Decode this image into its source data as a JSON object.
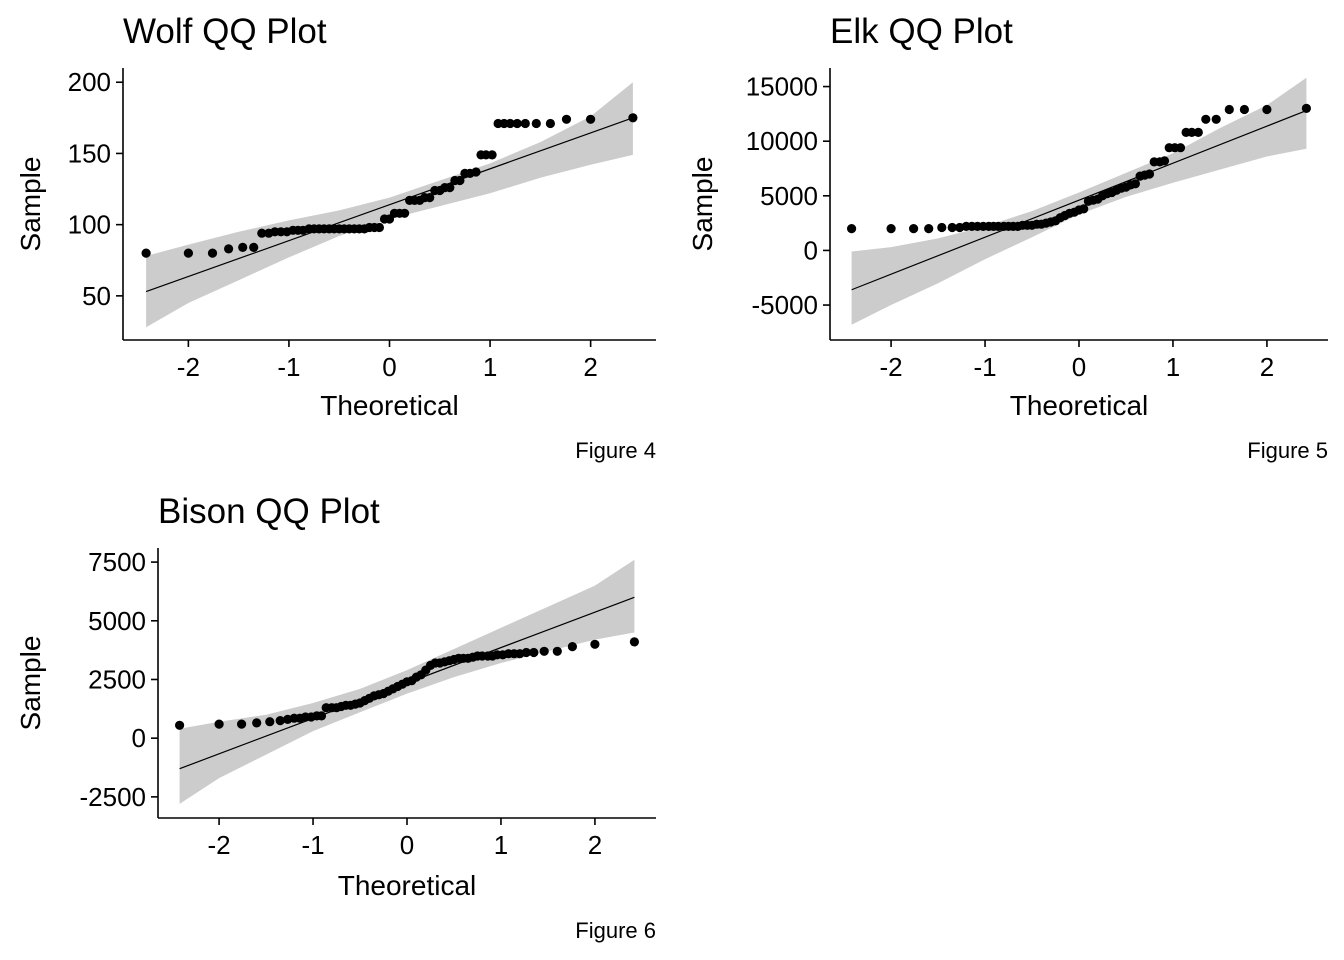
{
  "chart_data": [
    {
      "type": "scatter",
      "title": "Wolf QQ Plot",
      "xlabel": "Theoretical",
      "ylabel": "Sample",
      "caption": "Figure 4",
      "xlim": [
        -2.65,
        2.65
      ],
      "ylim": [
        19,
        210
      ],
      "xticks": [
        -2,
        -1,
        0,
        1,
        2
      ],
      "xtick_labels": [
        "-2",
        "-1",
        "0",
        "1",
        "2"
      ],
      "yticks": [
        50,
        100,
        150,
        200
      ],
      "ytick_labels": [
        "50",
        "100",
        "150",
        "200"
      ],
      "grid": false,
      "reference_line": {
        "x": [
          -2.42,
          2.42
        ],
        "y": [
          53,
          175
        ]
      },
      "confidence_band": {
        "x": [
          -2.42,
          -2.0,
          -1.5,
          -1.0,
          -0.5,
          0.0,
          0.5,
          1.0,
          1.5,
          2.0,
          2.42
        ],
        "lower": [
          28,
          45,
          61,
          77,
          92,
          104,
          113,
          122,
          133,
          142,
          149
        ],
        "upper": [
          78,
          86,
          95,
          103,
          110,
          119,
          131,
          143,
          158,
          176,
          200
        ]
      },
      "points": {
        "x": [
          -2.42,
          -2.0,
          -1.76,
          -1.6,
          -1.46,
          -1.35,
          -1.27,
          -1.2,
          -1.14,
          -1.08,
          -1.02,
          -0.96,
          -0.91,
          -0.86,
          -0.8,
          -0.75,
          -0.7,
          -0.65,
          -0.6,
          -0.55,
          -0.5,
          -0.45,
          -0.4,
          -0.35,
          -0.3,
          -0.25,
          -0.2,
          -0.15,
          -0.1,
          -0.05,
          0.0,
          0.05,
          0.1,
          0.15,
          0.2,
          0.25,
          0.3,
          0.35,
          0.4,
          0.45,
          0.5,
          0.55,
          0.6,
          0.65,
          0.7,
          0.75,
          0.8,
          0.86,
          0.91,
          0.96,
          1.02,
          1.08,
          1.14,
          1.2,
          1.27,
          1.35,
          1.46,
          1.6,
          1.76,
          2.0,
          2.42
        ],
        "y": [
          80,
          80,
          80,
          83,
          84,
          84,
          94,
          94,
          95,
          95,
          95,
          96,
          96,
          96,
          97,
          97,
          97,
          97,
          97,
          97,
          97,
          97,
          97,
          97,
          97,
          97,
          98,
          98,
          98,
          104,
          104,
          108,
          108,
          108,
          117,
          117,
          117,
          119,
          119,
          124,
          124,
          126,
          126,
          131,
          131,
          136,
          136,
          137,
          149,
          149,
          149,
          171,
          171,
          171,
          171,
          171,
          171,
          171,
          174,
          174,
          175
        ]
      }
    },
    {
      "type": "scatter",
      "title": "Elk QQ Plot",
      "xlabel": "Theoretical",
      "ylabel": "Sample",
      "caption": "Figure 5",
      "xlim": [
        -2.65,
        2.65
      ],
      "ylim": [
        -8200,
        16700
      ],
      "xticks": [
        -2,
        -1,
        0,
        1,
        2
      ],
      "xtick_labels": [
        "-2",
        "-1",
        "0",
        "1",
        "2"
      ],
      "yticks": [
        -5000,
        0,
        5000,
        10000,
        15000
      ],
      "ytick_labels": [
        "-5000",
        "0",
        "5000",
        "10000",
        "15000"
      ],
      "grid": false,
      "reference_line": {
        "x": [
          -2.42,
          2.42
        ],
        "y": [
          -3600,
          12800
        ]
      },
      "confidence_band": {
        "x": [
          -2.42,
          -2.0,
          -1.5,
          -1.0,
          -0.5,
          0.0,
          0.5,
          1.0,
          1.5,
          2.0,
          2.42
        ],
        "lower": [
          -6800,
          -5000,
          -3000,
          -800,
          1200,
          3300,
          4900,
          6200,
          7400,
          8600,
          9300
        ],
        "upper": [
          -100,
          300,
          1100,
          2200,
          3600,
          5300,
          7100,
          8900,
          11200,
          13300,
          15800
        ]
      },
      "points": {
        "x": [
          -2.42,
          -2.0,
          -1.76,
          -1.6,
          -1.46,
          -1.35,
          -1.27,
          -1.2,
          -1.14,
          -1.08,
          -1.02,
          -0.96,
          -0.91,
          -0.86,
          -0.8,
          -0.75,
          -0.7,
          -0.65,
          -0.6,
          -0.55,
          -0.5,
          -0.45,
          -0.4,
          -0.35,
          -0.3,
          -0.25,
          -0.2,
          -0.15,
          -0.1,
          -0.05,
          0.0,
          0.05,
          0.1,
          0.15,
          0.2,
          0.25,
          0.3,
          0.35,
          0.4,
          0.45,
          0.5,
          0.55,
          0.6,
          0.65,
          0.7,
          0.75,
          0.8,
          0.86,
          0.91,
          0.96,
          1.02,
          1.08,
          1.14,
          1.2,
          1.27,
          1.35,
          1.46,
          1.6,
          1.76,
          2.0,
          2.42
        ],
        "y": [
          2000,
          2000,
          2000,
          2000,
          2100,
          2100,
          2100,
          2200,
          2200,
          2200,
          2200,
          2200,
          2200,
          2200,
          2200,
          2200,
          2200,
          2200,
          2300,
          2300,
          2300,
          2400,
          2400,
          2500,
          2600,
          2700,
          3000,
          3200,
          3400,
          3500,
          3700,
          3800,
          4500,
          4600,
          4700,
          5000,
          5200,
          5300,
          5500,
          5700,
          5800,
          6000,
          6100,
          6800,
          6900,
          7000,
          8100,
          8100,
          8200,
          9400,
          9400,
          9400,
          10800,
          10800,
          10800,
          12000,
          12000,
          12900,
          12900,
          12900,
          13000
        ]
      }
    },
    {
      "type": "scatter",
      "title": "Bison QQ Plot",
      "xlabel": "Theoretical",
      "ylabel": "Sample",
      "caption": "Figure 6",
      "xlim": [
        -2.65,
        2.65
      ],
      "ylim": [
        -3400,
        8100
      ],
      "xticks": [
        -2,
        -1,
        0,
        1,
        2
      ],
      "xtick_labels": [
        "-2",
        "-1",
        "0",
        "1",
        "2"
      ],
      "yticks": [
        -2500,
        0,
        2500,
        5000,
        7500
      ],
      "ytick_labels": [
        "-2500",
        "0",
        "2500",
        "5000",
        "7500"
      ],
      "grid": false,
      "reference_line": {
        "x": [
          -2.42,
          2.42
        ],
        "y": [
          -1300,
          6000
        ]
      },
      "confidence_band": {
        "x": [
          -2.42,
          -2.0,
          -1.5,
          -1.0,
          -0.5,
          0.0,
          0.5,
          1.0,
          1.5,
          2.0,
          2.42
        ],
        "lower": [
          -2800,
          -1700,
          -700,
          300,
          1100,
          1900,
          2600,
          3200,
          3700,
          4200,
          4500
        ],
        "upper": [
          400,
          700,
          1000,
          1500,
          2100,
          2900,
          3800,
          4700,
          5600,
          6500,
          7600
        ]
      },
      "points": {
        "x": [
          -2.42,
          -2.0,
          -1.76,
          -1.6,
          -1.46,
          -1.35,
          -1.27,
          -1.2,
          -1.14,
          -1.08,
          -1.02,
          -0.96,
          -0.91,
          -0.86,
          -0.8,
          -0.75,
          -0.7,
          -0.65,
          -0.6,
          -0.55,
          -0.5,
          -0.45,
          -0.4,
          -0.35,
          -0.3,
          -0.25,
          -0.2,
          -0.15,
          -0.1,
          -0.05,
          0.0,
          0.05,
          0.1,
          0.15,
          0.2,
          0.25,
          0.3,
          0.35,
          0.4,
          0.45,
          0.5,
          0.55,
          0.6,
          0.65,
          0.7,
          0.75,
          0.8,
          0.86,
          0.91,
          0.96,
          1.02,
          1.08,
          1.14,
          1.2,
          1.27,
          1.35,
          1.46,
          1.6,
          1.76,
          2.0,
          2.42
        ],
        "y": [
          550,
          600,
          600,
          650,
          700,
          750,
          800,
          850,
          850,
          900,
          900,
          950,
          950,
          1300,
          1300,
          1300,
          1350,
          1400,
          1400,
          1450,
          1500,
          1600,
          1700,
          1800,
          1850,
          1900,
          2000,
          2100,
          2200,
          2300,
          2400,
          2450,
          2600,
          2700,
          2900,
          3100,
          3200,
          3200,
          3250,
          3300,
          3350,
          3400,
          3400,
          3400,
          3450,
          3500,
          3500,
          3500,
          3500,
          3550,
          3550,
          3600,
          3600,
          3600,
          3650,
          3650,
          3700,
          3700,
          3900,
          4000,
          4100
        ]
      }
    }
  ]
}
